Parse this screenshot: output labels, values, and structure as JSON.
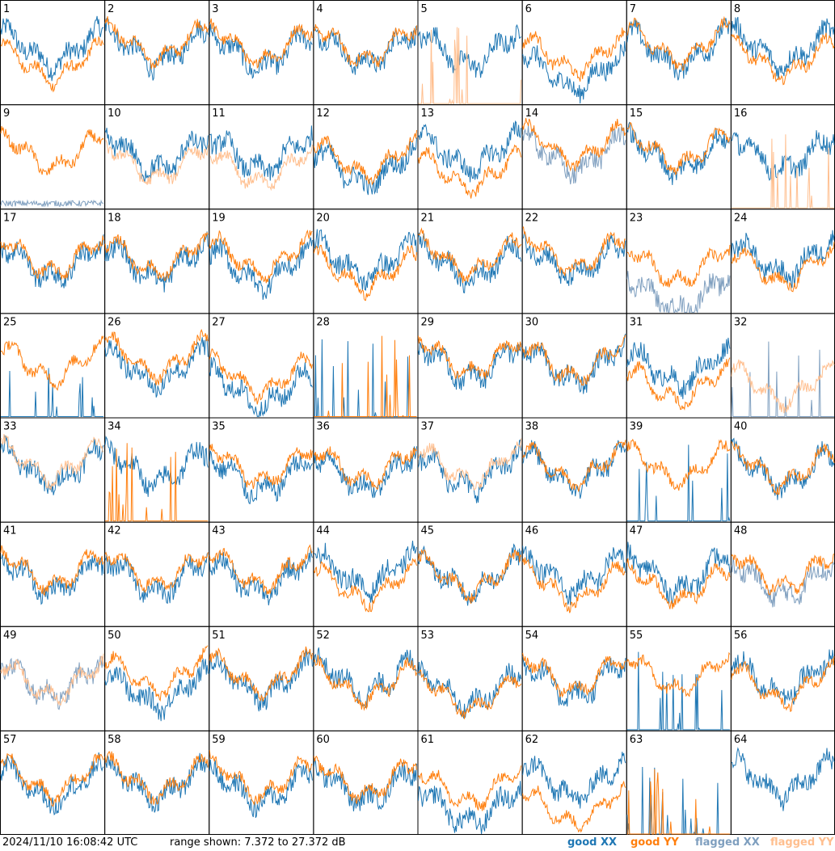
{
  "chart_data": {
    "type": "line",
    "layout": "8x8 grid of small-multiple spectra",
    "panels": [
      {
        "id": "1",
        "status": [
          "good",
          "good"
        ],
        "level_xx": 0.62,
        "level_yy": 0.45
      },
      {
        "id": "2",
        "status": [
          "good",
          "good"
        ],
        "level_xx": 0.62,
        "level_yy": 0.68
      },
      {
        "id": "3",
        "status": [
          "good",
          "good"
        ],
        "level_xx": 0.58,
        "level_yy": 0.66
      },
      {
        "id": "4",
        "status": [
          "good",
          "good"
        ],
        "level_xx": 0.62,
        "level_yy": 0.66
      },
      {
        "id": "5",
        "status": [
          "good",
          "flagged"
        ],
        "level_xx": 0.6,
        "level_yy": 0.0
      },
      {
        "id": "6",
        "status": [
          "good",
          "good"
        ],
        "level_xx": 0.35,
        "level_yy": 0.55
      },
      {
        "id": "7",
        "status": [
          "good",
          "good"
        ],
        "level_xx": 0.6,
        "level_yy": 0.66
      },
      {
        "id": "8",
        "status": [
          "good",
          "good"
        ],
        "level_xx": 0.62,
        "level_yy": 0.5
      },
      {
        "id": "9",
        "status": [
          "flagged",
          "good"
        ],
        "level_xx": 0.05,
        "level_yy": 0.62
      },
      {
        "id": "10",
        "status": [
          "good",
          "flagged"
        ],
        "level_xx": 0.6,
        "level_yy": 0.5
      },
      {
        "id": "11",
        "status": [
          "good",
          "flagged"
        ],
        "level_xx": 0.6,
        "level_yy": 0.45
      },
      {
        "id": "12",
        "status": [
          "good",
          "good"
        ],
        "level_xx": 0.45,
        "level_yy": 0.55
      },
      {
        "id": "13",
        "status": [
          "good",
          "good"
        ],
        "level_xx": 0.62,
        "level_yy": 0.4
      },
      {
        "id": "14",
        "status": [
          "flagged",
          "good"
        ],
        "level_xx": 0.6,
        "level_yy": 0.7
      },
      {
        "id": "15",
        "status": [
          "good",
          "good"
        ],
        "level_xx": 0.6,
        "level_yy": 0.66
      },
      {
        "id": "16",
        "status": [
          "good",
          "flagged"
        ],
        "level_xx": 0.6,
        "level_yy": 0.0
      },
      {
        "id": "17",
        "status": [
          "good",
          "good"
        ],
        "level_xx": 0.56,
        "level_yy": 0.62
      },
      {
        "id": "18",
        "status": [
          "good",
          "good"
        ],
        "level_xx": 0.56,
        "level_yy": 0.62
      },
      {
        "id": "19",
        "status": [
          "good",
          "good"
        ],
        "level_xx": 0.5,
        "level_yy": 0.62
      },
      {
        "id": "20",
        "status": [
          "good",
          "good"
        ],
        "level_xx": 0.58,
        "level_yy": 0.45
      },
      {
        "id": "21",
        "status": [
          "good",
          "good"
        ],
        "level_xx": 0.55,
        "level_yy": 0.62
      },
      {
        "id": "22",
        "status": [
          "good",
          "good"
        ],
        "level_xx": 0.58,
        "level_yy": 0.66
      },
      {
        "id": "23",
        "status": [
          "flagged",
          "good"
        ],
        "level_xx": 0.2,
        "level_yy": 0.52
      },
      {
        "id": "24",
        "status": [
          "good",
          "good"
        ],
        "level_xx": 0.6,
        "level_yy": 0.5
      },
      {
        "id": "25",
        "status": [
          "good",
          "good"
        ],
        "level_xx": 0.0,
        "level_yy": 0.6
      },
      {
        "id": "26",
        "status": [
          "good",
          "good"
        ],
        "level_xx": 0.55,
        "level_yy": 0.66
      },
      {
        "id": "27",
        "status": [
          "good",
          "good"
        ],
        "level_xx": 0.3,
        "level_yy": 0.45
      },
      {
        "id": "28",
        "status": [
          "good",
          "good"
        ],
        "level_xx": 0.0,
        "level_yy": 0.0
      },
      {
        "id": "29",
        "status": [
          "good",
          "good"
        ],
        "level_xx": 0.6,
        "level_yy": 0.66
      },
      {
        "id": "30",
        "status": [
          "good",
          "good"
        ],
        "level_xx": 0.58,
        "level_yy": 0.62
      },
      {
        "id": "31",
        "status": [
          "good",
          "good"
        ],
        "level_xx": 0.55,
        "level_yy": 0.35
      },
      {
        "id": "32",
        "status": [
          "flagged",
          "flagged"
        ],
        "level_xx": 0.0,
        "level_yy": 0.35
      },
      {
        "id": "33",
        "status": [
          "good",
          "flagged"
        ],
        "level_xx": 0.6,
        "level_yy": 0.66
      },
      {
        "id": "34",
        "status": [
          "good",
          "good"
        ],
        "level_xx": 0.6,
        "level_yy": 0.0
      },
      {
        "id": "35",
        "status": [
          "good",
          "good"
        ],
        "level_xx": 0.5,
        "level_yy": 0.62
      },
      {
        "id": "36",
        "status": [
          "good",
          "good"
        ],
        "level_xx": 0.55,
        "level_yy": 0.62
      },
      {
        "id": "37",
        "status": [
          "good",
          "flagged"
        ],
        "level_xx": 0.55,
        "level_yy": 0.62
      },
      {
        "id": "38",
        "status": [
          "good",
          "good"
        ],
        "level_xx": 0.58,
        "level_yy": 0.62
      },
      {
        "id": "39",
        "status": [
          "good",
          "good"
        ],
        "level_xx": 0.0,
        "level_yy": 0.62
      },
      {
        "id": "40",
        "status": [
          "good",
          "good"
        ],
        "level_xx": 0.58,
        "level_yy": 0.6
      },
      {
        "id": "41",
        "status": [
          "good",
          "good"
        ],
        "level_xx": 0.55,
        "level_yy": 0.62
      },
      {
        "id": "42",
        "status": [
          "good",
          "good"
        ],
        "level_xx": 0.55,
        "level_yy": 0.62
      },
      {
        "id": "43",
        "status": [
          "good",
          "good"
        ],
        "level_xx": 0.55,
        "level_yy": 0.62
      },
      {
        "id": "44",
        "status": [
          "good",
          "good"
        ],
        "level_xx": 0.6,
        "level_yy": 0.45
      },
      {
        "id": "45",
        "status": [
          "good",
          "good"
        ],
        "level_xx": 0.55,
        "level_yy": 0.55
      },
      {
        "id": "46",
        "status": [
          "good",
          "good"
        ],
        "level_xx": 0.58,
        "level_yy": 0.45
      },
      {
        "id": "47",
        "status": [
          "good",
          "good"
        ],
        "level_xx": 0.58,
        "level_yy": 0.45
      },
      {
        "id": "48",
        "status": [
          "flagged",
          "good"
        ],
        "level_xx": 0.5,
        "level_yy": 0.6
      },
      {
        "id": "49",
        "status": [
          "flagged",
          "flagged"
        ],
        "level_xx": 0.55,
        "level_yy": 0.55
      },
      {
        "id": "50",
        "status": [
          "good",
          "good"
        ],
        "level_xx": 0.45,
        "level_yy": 0.62
      },
      {
        "id": "51",
        "status": [
          "good",
          "good"
        ],
        "level_xx": 0.55,
        "level_yy": 0.62
      },
      {
        "id": "52",
        "status": [
          "good",
          "good"
        ],
        "level_xx": 0.58,
        "level_yy": 0.52
      },
      {
        "id": "53",
        "status": [
          "good",
          "good"
        ],
        "level_xx": 0.45,
        "level_yy": 0.4
      },
      {
        "id": "54",
        "status": [
          "good",
          "good"
        ],
        "level_xx": 0.55,
        "level_yy": 0.62
      },
      {
        "id": "55",
        "status": [
          "good",
          "good"
        ],
        "level_xx": 0.0,
        "level_yy": 0.62
      },
      {
        "id": "56",
        "status": [
          "good",
          "good"
        ],
        "level_xx": 0.58,
        "level_yy": 0.5
      },
      {
        "id": "57",
        "status": [
          "good",
          "good"
        ],
        "level_xx": 0.55,
        "level_yy": 0.62
      },
      {
        "id": "58",
        "status": [
          "good",
          "good"
        ],
        "level_xx": 0.58,
        "level_yy": 0.62
      },
      {
        "id": "59",
        "status": [
          "good",
          "good"
        ],
        "level_xx": 0.52,
        "level_yy": 0.62
      },
      {
        "id": "60",
        "status": [
          "good",
          "good"
        ],
        "level_xx": 0.55,
        "level_yy": 0.62
      },
      {
        "id": "61",
        "status": [
          "good",
          "good"
        ],
        "level_xx": 0.3,
        "level_yy": 0.52
      },
      {
        "id": "62",
        "status": [
          "good",
          "good"
        ],
        "level_xx": 0.6,
        "level_yy": 0.3
      },
      {
        "id": "63",
        "status": [
          "good",
          "good"
        ],
        "level_xx": 0.0,
        "level_yy": 0.0
      },
      {
        "id": "64",
        "status": [
          "good",
          "good"
        ],
        "level_xx": 0.62,
        "level_yy": -1
      }
    ],
    "range_db": [
      7.372,
      27.372
    ]
  },
  "footer": {
    "timestamp": "2024/11/10 16:08:42 UTC",
    "range_text": "range shown: 7.372 to 27.372 dB",
    "legend": [
      {
        "label": "good XX",
        "color": "#1f77b4"
      },
      {
        "label": "good YY",
        "color": "#ff7f0e"
      },
      {
        "label": "flagged XX",
        "color": "#7f9fbf"
      },
      {
        "label": "flagged YY",
        "color": "#ffbf8f"
      }
    ]
  }
}
